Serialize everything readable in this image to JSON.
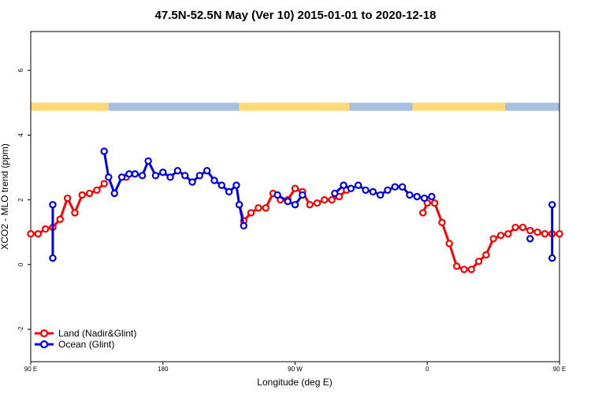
{
  "chart_data": {
    "type": "line",
    "title": "47.5N-52.5N May (Ver 10)   2015-01-01 to 2020-12-18",
    "xlabel": "Longitude (deg E)",
    "ylabel": "XCO2 - MLO trend (ppm)",
    "xlim": [
      90,
      450
    ],
    "ylim": [
      -3,
      7.2
    ],
    "x_ticks": [
      {
        "value": 90,
        "label": "90 E"
      },
      {
        "value": 180,
        "label": "180"
      },
      {
        "value": 270,
        "label": "90 W"
      },
      {
        "value": 360,
        "label": "0"
      },
      {
        "value": 450,
        "label": "90 E"
      },
      {
        "value": 540,
        "label": "180"
      }
    ],
    "y_ticks": [
      {
        "value": -2,
        "label": "-2"
      },
      {
        "value": 0,
        "label": "0"
      },
      {
        "value": 2,
        "label": "2"
      },
      {
        "value": 4,
        "label": "4"
      },
      {
        "value": 6,
        "label": "6"
      }
    ],
    "grid": false,
    "legend_position": "bottom-left",
    "land_ocean_strip": {
      "y_range": [
        4.75,
        5.0
      ],
      "land_color": "#ffd978",
      "ocean_color": "#a8bfe0",
      "segments": [
        {
          "type": "land",
          "x": [
            90,
            143
          ]
        },
        {
          "type": "ocean",
          "x": [
            143,
            232
          ]
        },
        {
          "type": "land",
          "x": [
            232,
            307
          ]
        },
        {
          "type": "ocean",
          "x": [
            307,
            350
          ]
        },
        {
          "type": "land",
          "x": [
            350,
            413
          ]
        },
        {
          "type": "ocean",
          "x": [
            413,
            450
          ]
        }
      ]
    },
    "series": [
      {
        "name": "Land (Nadir&Glint)",
        "color": "#ff0000",
        "segments": [
          {
            "x": [
              90,
              95,
              100,
              105,
              110,
              115,
              120,
              125,
              130,
              135,
              140
            ],
            "y": [
              0.95,
              0.95,
              1.1,
              1.15,
              1.4,
              2.05,
              1.6,
              2.15,
              2.2,
              2.3,
              2.5
            ]
          },
          {
            "x": [
              155
            ],
            "y": [
              2.7
            ]
          },
          {
            "x": [
              232,
              235,
              240,
              245,
              250,
              255,
              260,
              265,
              270,
              275,
              280,
              285,
              290,
              295,
              300,
              305
            ],
            "y": [
              1.85,
              1.35,
              1.6,
              1.75,
              1.75,
              2.2,
              2.0,
              2.0,
              2.35,
              2.25,
              1.85,
              1.9,
              2.0,
              2.0,
              2.1,
              2.3
            ]
          },
          {
            "x": [
              357,
              360,
              365,
              370,
              375,
              380,
              385,
              390,
              395,
              400,
              405,
              410,
              415,
              420,
              425,
              430,
              435,
              440,
              445,
              450
            ],
            "y": [
              1.6,
              1.9,
              1.9,
              1.3,
              0.65,
              -0.05,
              -0.15,
              -0.15,
              0.1,
              0.3,
              0.8,
              0.9,
              0.95,
              1.15,
              1.15,
              1.05,
              1.0,
              0.95,
              0.95,
              0.95
            ]
          }
        ]
      },
      {
        "name": "Ocean (Glint)",
        "color": "#0000ee",
        "segments": [
          {
            "x": [
              105,
              105
            ],
            "y": [
              1.85,
              0.2
            ]
          },
          {
            "x": [
              140,
              143,
              147,
              152,
              157,
              161,
              166,
              170,
              175,
              180,
              185,
              190,
              195,
              200,
              205,
              210,
              215,
              220,
              225,
              230,
              232,
              235
            ],
            "y": [
              3.5,
              2.7,
              2.2,
              2.7,
              2.8,
              2.8,
              2.75,
              3.2,
              2.75,
              2.85,
              2.7,
              2.9,
              2.75,
              2.55,
              2.75,
              2.9,
              2.6,
              2.45,
              2.25,
              2.45,
              1.85,
              1.2
            ]
          },
          {
            "x": [
              258,
              265,
              270,
              275
            ],
            "y": [
              2.15,
              1.95,
              1.85,
              2.15
            ]
          },
          {
            "x": [
              297,
              303,
              308,
              313,
              318,
              323,
              328,
              333,
              338,
              343,
              348,
              353,
              358,
              363
            ],
            "y": [
              2.2,
              2.45,
              2.35,
              2.45,
              2.3,
              2.25,
              2.15,
              2.3,
              2.4,
              2.4,
              2.15,
              2.1,
              2.05,
              2.1
            ]
          },
          {
            "x": [
              430
            ],
            "y": [
              0.8
            ]
          },
          {
            "x": [
              445,
              445
            ],
            "y": [
              1.85,
              0.2
            ]
          }
        ]
      }
    ]
  }
}
